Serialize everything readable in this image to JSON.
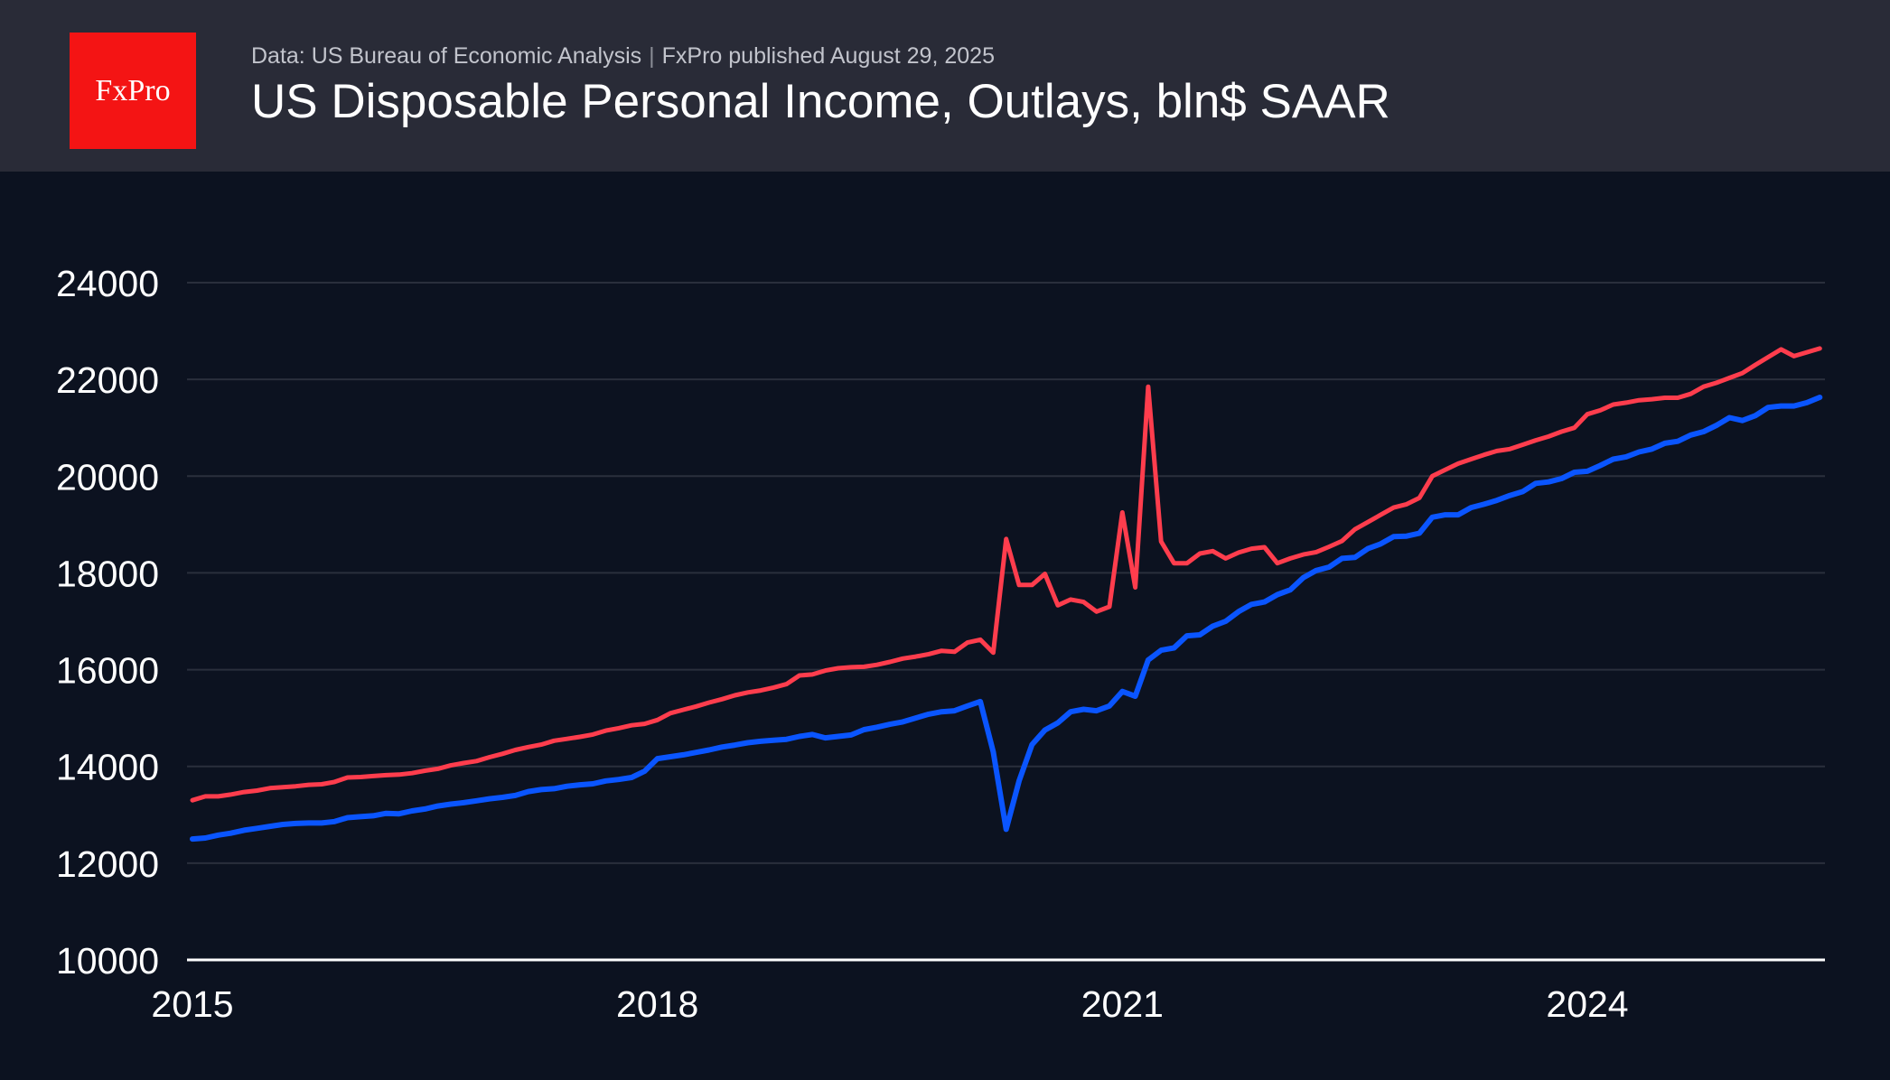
{
  "header": {
    "logo_text": "FxPro",
    "source": "Data: US Bureau of Economic Analysis",
    "published": "FxPro published August 29, 2025",
    "separator": "|",
    "title": "US Disposable Personal Income, Outlays, bln$ SAAR"
  },
  "chart_data": {
    "type": "line",
    "title": "US Disposable Personal Income, Outlays, bln$ SAAR",
    "xlabel": "",
    "ylabel": "",
    "x_start": "2015-01",
    "x_end": "2025-07",
    "x_frequency": "monthly",
    "x_ticks": [
      "2015",
      "2018",
      "2021",
      "2024"
    ],
    "y_ticks": [
      10000,
      12000,
      14000,
      16000,
      18000,
      20000,
      22000,
      24000
    ],
    "ylim": [
      10000,
      24000
    ],
    "grid": true,
    "legend": "none",
    "series": [
      {
        "color": "#ff3d4d",
        "values": [
          13300,
          13380,
          13380,
          13420,
          13470,
          13500,
          13550,
          13570,
          13590,
          13620,
          13630,
          13680,
          13770,
          13780,
          13800,
          13820,
          13830,
          13860,
          13910,
          13950,
          14020,
          14070,
          14110,
          14190,
          14260,
          14340,
          14400,
          14450,
          14530,
          14570,
          14610,
          14660,
          14740,
          14790,
          14850,
          14880,
          14960,
          15100,
          15170,
          15240,
          15320,
          15390,
          15470,
          15530,
          15570,
          15630,
          15700,
          15880,
          15900,
          15980,
          16030,
          16050,
          16060,
          16100,
          16160,
          16230,
          16270,
          16320,
          16390,
          16370,
          16560,
          16620,
          16350,
          18700,
          17750,
          17750,
          17980,
          17330,
          17450,
          17400,
          17200,
          17300,
          19250,
          17700,
          21850,
          18650,
          18200,
          18200,
          18400,
          18450,
          18300,
          18420,
          18500,
          18530,
          18200,
          18300,
          18380,
          18430,
          18540,
          18660,
          18900,
          19050,
          19200,
          19350,
          19420,
          19550,
          20000,
          20130,
          20260,
          20350,
          20440,
          20520,
          20560,
          20650,
          20740,
          20820,
          20920,
          21000,
          21280,
          21360,
          21480,
          21520,
          21570,
          21590,
          21620,
          21620,
          21700,
          21850,
          21930,
          22030,
          22130,
          22300,
          22460,
          22620,
          22480,
          22560,
          22640
        ]
      },
      {
        "color": "#0a55ff",
        "values": [
          12500,
          12520,
          12580,
          12620,
          12680,
          12720,
          12760,
          12800,
          12820,
          12830,
          12830,
          12860,
          12940,
          12960,
          12980,
          13030,
          13020,
          13080,
          13120,
          13180,
          13220,
          13250,
          13290,
          13330,
          13360,
          13400,
          13480,
          13520,
          13540,
          13590,
          13620,
          13640,
          13700,
          13730,
          13770,
          13900,
          14160,
          14200,
          14240,
          14290,
          14340,
          14400,
          14440,
          14490,
          14520,
          14540,
          14560,
          14620,
          14660,
          14590,
          14620,
          14650,
          14760,
          14810,
          14870,
          14920,
          15000,
          15080,
          15130,
          15150,
          15250,
          15340,
          14300,
          12700,
          13700,
          14450,
          14750,
          14900,
          15130,
          15180,
          15150,
          15250,
          15550,
          15450,
          16200,
          16400,
          16450,
          16700,
          16720,
          16900,
          17000,
          17200,
          17350,
          17400,
          17550,
          17650,
          17900,
          18050,
          18120,
          18300,
          18320,
          18500,
          18600,
          18750,
          18760,
          18820,
          19150,
          19200,
          19200,
          19350,
          19420,
          19500,
          19600,
          19680,
          19850,
          19880,
          19950,
          20080,
          20100,
          20220,
          20350,
          20400,
          20500,
          20560,
          20680,
          20720,
          20850,
          20920,
          21050,
          21210,
          21150,
          21250,
          21420,
          21450,
          21450,
          21520,
          21630
        ]
      }
    ]
  },
  "colors": {
    "header_bg": "#292b37",
    "chart_bg": "#0c1220",
    "logo_bg": "#f41414",
    "gridline": "#2a2f3c"
  }
}
